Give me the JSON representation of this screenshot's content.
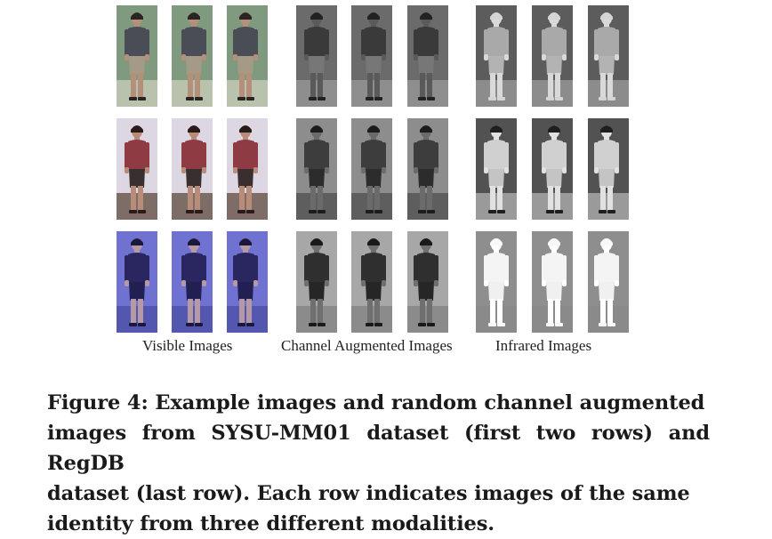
{
  "figure": {
    "group_labels": {
      "visible": "Visible Images",
      "channel": "Channel Augmented Images",
      "infrared": "Infrared Images"
    },
    "caption_lines": [
      "Figure 4: Example images and random channel augmented",
      "images from SYSU-MM01 dataset (first two rows) and RegDB",
      "dataset (last row). Each row indicates images of the same",
      "identity from three different modalities."
    ],
    "row_styles": [
      {
        "visible": {
          "bg": "#7f9a7e",
          "floor": "#b9c2ad",
          "shirt": "#4a4d55",
          "pants": "#a59a86",
          "skin": "#b58f79",
          "hair": "#2a2522"
        },
        "channel": {
          "bg": "#6b6b6b",
          "floor": "#8e8e8e",
          "shirt": "#3a3a3a",
          "pants": "#777777",
          "skin": "#5a5a5a",
          "hair": "#222222"
        },
        "infrared": {
          "bg": "#5c5c5c",
          "floor": "#8c8c8c",
          "shirt": "#a9a9a9",
          "pants": "#b3b3b3",
          "skin": "#d9d9d9",
          "hair": "#d4d4d4"
        }
      },
      {
        "visible": {
          "bg": "#dcd7e2",
          "floor": "#7d6d66",
          "shirt": "#8e3b44",
          "pants": "#3a2f2f",
          "skin": "#b98c79",
          "hair": "#2a1b1b"
        },
        "channel": {
          "bg": "#8d8d8d",
          "floor": "#5e5e5e",
          "shirt": "#3d3d3d",
          "pants": "#2c2c2c",
          "skin": "#6b6b6b",
          "hair": "#1d1d1d"
        },
        "infrared": {
          "bg": "#525252",
          "floor": "#9a9a9a",
          "shirt": "#d0d0d0",
          "pants": "#c4c4c4",
          "skin": "#e1e1e1",
          "hair": "#1e1e1e"
        }
      },
      {
        "visible": {
          "bg": "#6f72d1",
          "floor": "#5457b0",
          "shirt": "#2a2660",
          "pants": "#221f52",
          "skin": "#b59aa5",
          "hair": "#1b1839"
        },
        "channel": {
          "bg": "#a7a7a7",
          "floor": "#8b8b8b",
          "shirt": "#2f2f2f",
          "pants": "#262626",
          "skin": "#6f6f6f",
          "hair": "#1a1a1a"
        },
        "infrared": {
          "bg": "#8e8e8e",
          "floor": "#8a8a8a",
          "shirt": "#f4f4f4",
          "pants": "#f0f0f0",
          "skin": "#ffffff",
          "hair": "#f8f8f8"
        }
      }
    ]
  }
}
